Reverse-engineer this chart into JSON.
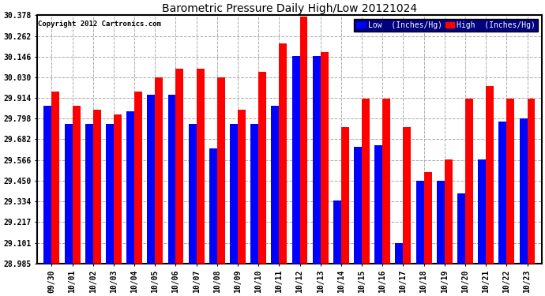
{
  "title": "Barometric Pressure Daily High/Low 20121024",
  "copyright": "Copyright 2012 Cartronics.com",
  "legend_low": "Low  (Inches/Hg)",
  "legend_high": "High  (Inches/Hg)",
  "dates": [
    "09/30",
    "10/01",
    "10/02",
    "10/03",
    "10/04",
    "10/05",
    "10/06",
    "10/07",
    "10/08",
    "10/09",
    "10/10",
    "10/11",
    "10/12",
    "10/13",
    "10/14",
    "10/15",
    "10/16",
    "10/17",
    "10/18",
    "10/19",
    "10/20",
    "10/21",
    "10/22",
    "10/23"
  ],
  "low": [
    29.87,
    29.77,
    29.77,
    29.77,
    29.84,
    29.93,
    29.93,
    29.77,
    29.63,
    29.77,
    29.77,
    29.87,
    30.15,
    30.15,
    29.34,
    29.64,
    29.65,
    29.1,
    29.45,
    29.45,
    29.38,
    29.57,
    29.78,
    29.8
  ],
  "high": [
    29.95,
    29.87,
    29.85,
    29.82,
    29.95,
    30.03,
    30.08,
    30.08,
    30.03,
    29.85,
    30.06,
    30.22,
    30.37,
    30.17,
    29.75,
    29.91,
    29.91,
    29.75,
    29.5,
    29.57,
    29.91,
    29.98,
    29.91,
    29.91
  ],
  "ylim_min": 28.985,
  "ylim_max": 30.378,
  "yticks": [
    28.985,
    29.101,
    29.217,
    29.334,
    29.45,
    29.566,
    29.682,
    29.798,
    29.914,
    30.03,
    30.146,
    30.262,
    30.378
  ],
  "low_color": "#0000ff",
  "high_color": "#ff0000",
  "bg_color": "#ffffff",
  "grid_color": "#aaaaaa",
  "bar_width": 0.38
}
